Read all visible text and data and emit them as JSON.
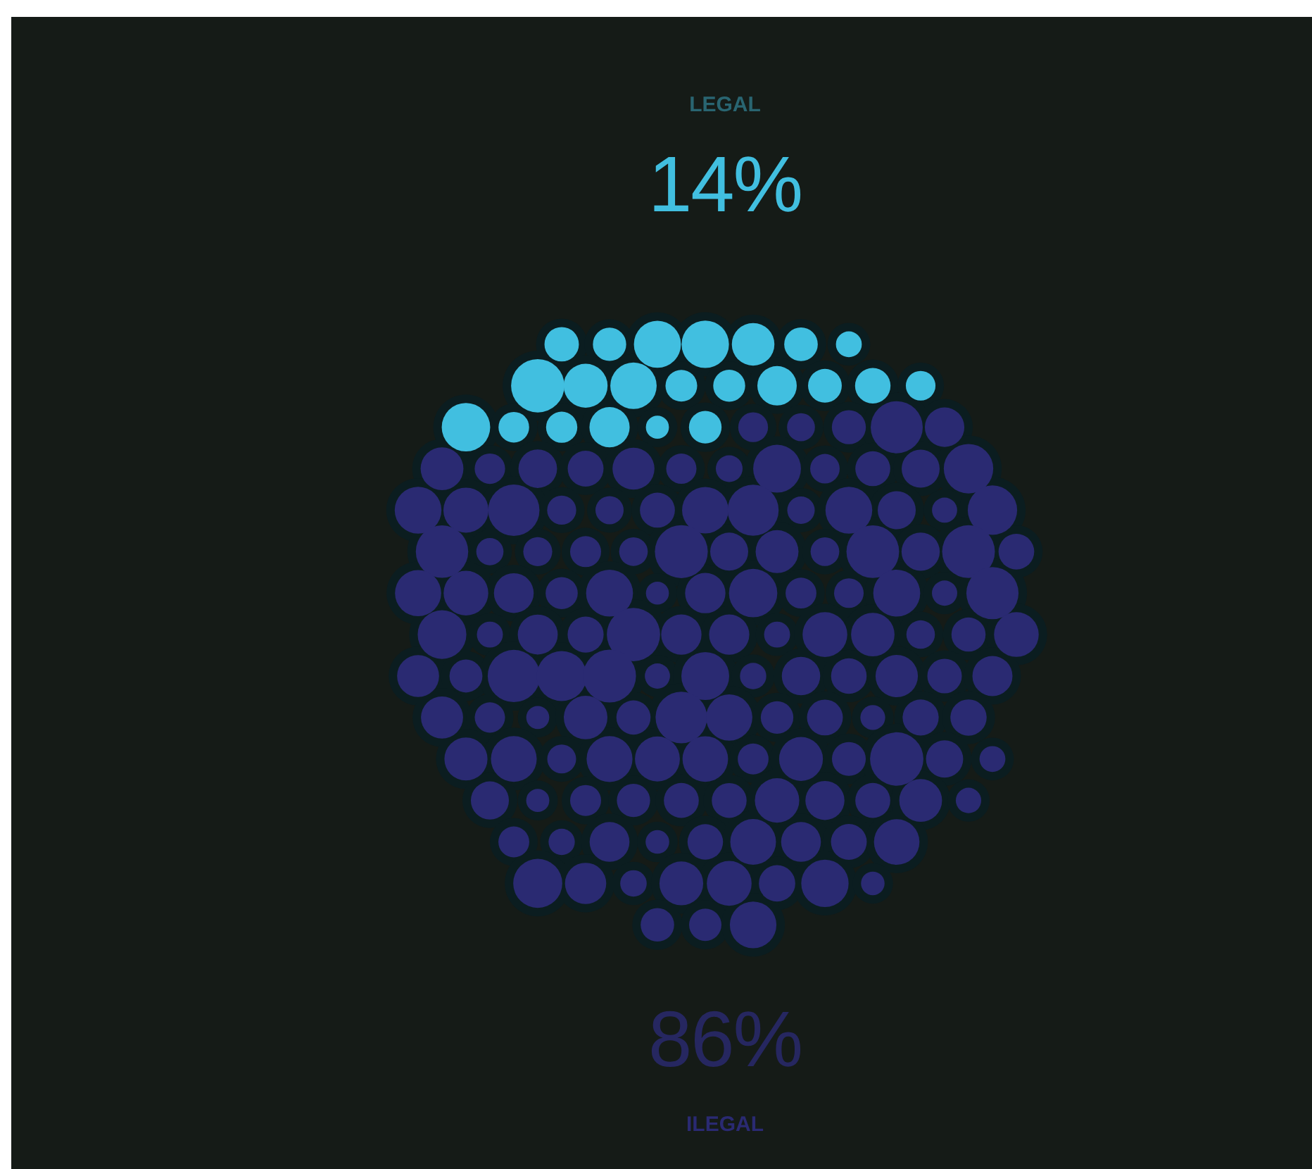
{
  "chart_data": {
    "type": "other",
    "categories": [
      "LEGAL",
      "ILEGAL"
    ],
    "values": [
      14,
      86
    ],
    "value_labels": [
      "14%",
      "86%"
    ],
    "colors": [
      "#41bfe0",
      "#2a2a72"
    ]
  }
}
